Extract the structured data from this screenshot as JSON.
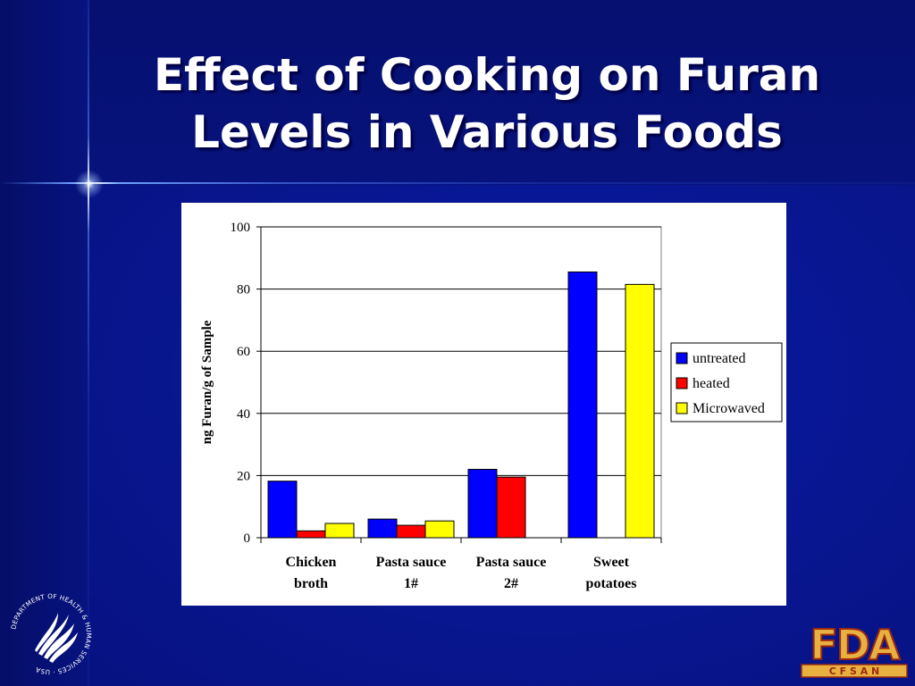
{
  "slide": {
    "title_line1": "Effect of Cooking on Furan",
    "title_line2": "Levels in Various Foods"
  },
  "logos": {
    "hhs_seal_text": "DEPARTMENT OF HEALTH & HUMAN SERVICES · USA",
    "fda_text": "FDA",
    "cfsan_text": "C F S A N"
  },
  "colors": {
    "background": "#081690",
    "untreated": "#0000ff",
    "heated": "#ff0000",
    "microwaved": "#ffff00",
    "logo_fill": "#e8b040",
    "logo_outline": "#9a2a10"
  },
  "chart_data": {
    "type": "bar",
    "title": "",
    "xlabel": "",
    "ylabel": "ng Furan/g of Sample",
    "ylim": [
      0,
      100
    ],
    "yticks": [
      0,
      20,
      40,
      60,
      80,
      100
    ],
    "grid": true,
    "legend_position": "right",
    "categories": [
      [
        "Chicken",
        "broth"
      ],
      [
        "Pasta sauce",
        "1#"
      ],
      [
        "Pasta sauce",
        "2#"
      ],
      [
        "Sweet",
        "potatoes"
      ]
    ],
    "series": [
      {
        "name": "untreated",
        "color": "#0000ff",
        "values": [
          18.2,
          6.0,
          22.0,
          85.5
        ]
      },
      {
        "name": "heated",
        "color": "#ff0000",
        "values": [
          2.2,
          4.0,
          19.5,
          null
        ]
      },
      {
        "name": "Microwaved",
        "color": "#ffff00",
        "values": [
          4.6,
          5.4,
          null,
          81.5
        ]
      }
    ]
  }
}
